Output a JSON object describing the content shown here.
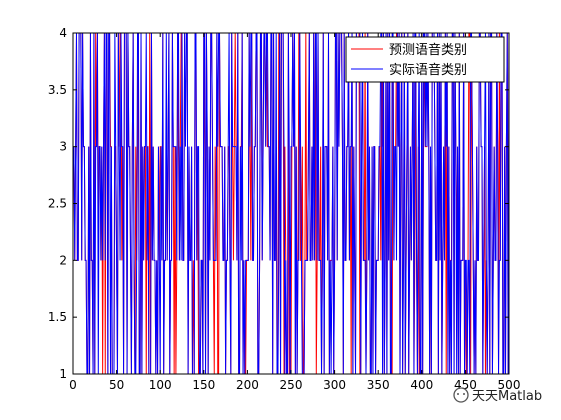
{
  "chart_data": {
    "type": "line",
    "title": "",
    "xlabel": "",
    "ylabel": "",
    "xlim": [
      0,
      500
    ],
    "ylim": [
      1,
      4
    ],
    "xticks": [
      0,
      50,
      100,
      150,
      200,
      250,
      300,
      350,
      400,
      450,
      500
    ],
    "yticks": [
      1,
      1.5,
      2,
      2.5,
      3,
      3.5,
      4
    ],
    "xtick_labels": [
      "0",
      "50",
      "100",
      "150",
      "200",
      "250",
      "300",
      "350",
      "400",
      "450",
      "500"
    ],
    "ytick_labels": [
      "1",
      "1.5",
      "2",
      "2.5",
      "3",
      "3.5",
      "4"
    ],
    "grid": false,
    "legend_position": "top-right",
    "series": [
      {
        "name": "预测语音类别",
        "color": "#ff0000",
        "values_note": "",
        "seed": 7
      },
      {
        "name": "实际语音类别",
        "color": "#0000ff",
        "seed": 13
      }
    ]
  },
  "watermark": {
    "text": "天天Matlab"
  }
}
